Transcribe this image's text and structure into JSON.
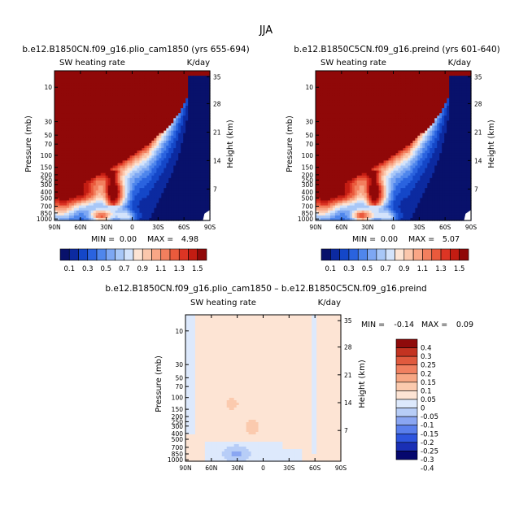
{
  "figure_title": "JJA",
  "colors": {
    "seq": [
      "#08116b",
      "#0c2aa0",
      "#1447c8",
      "#2a63df",
      "#4f86ec",
      "#7da7f3",
      "#a8c7f7",
      "#d3e3fb",
      "#fde4d4",
      "#fbc7ac",
      "#f9a686",
      "#f27f5e",
      "#ea5a3c",
      "#dc3524",
      "#c31c12",
      "#900808"
    ],
    "diff": [
      "#06086e",
      "#1a2fb5",
      "#2e55de",
      "#5a7fec",
      "#8aa6f2",
      "#b7cdf7",
      "#dde9fc",
      "#fde4d4",
      "#fbcaae",
      "#f7a784",
      "#f08060",
      "#e05a3e",
      "#c33321",
      "#8f0b0b"
    ]
  },
  "chart_data": [
    {
      "type": "heatmap",
      "panel": "left",
      "title": "b.e12.B1850CN.f09_g16.plio_cam1850 (yrs 655-694)",
      "left_label": "SW heating rate",
      "right_label": "K/day",
      "xlabel": "",
      "ylabel": "Pressure (mb)",
      "y2label": "Height (km)",
      "x_ticks": [
        "90N",
        "60N",
        "30N",
        "0",
        "30S",
        "60S",
        "90S"
      ],
      "y_ticks": [
        "10",
        "30",
        "50",
        "70",
        "100",
        "150",
        "200",
        "250",
        "300",
        "400",
        "500",
        "700",
        "850",
        "1000"
      ],
      "y2_ticks": [
        "35",
        "28",
        "21",
        "14",
        "7"
      ],
      "min_label": "MIN =",
      "min_value": "0.00",
      "max_label": "MAX =",
      "max_value": "4.98",
      "colorbar_labels": [
        "0.1",
        "0.3",
        "0.5",
        "0.7",
        "0.9",
        "1.1",
        "1.3",
        "1.5"
      ]
    },
    {
      "type": "heatmap",
      "panel": "right",
      "title": "b.e12.B1850C5CN.f09_g16.preind (yrs 601-640)",
      "left_label": "SW heating rate",
      "right_label": "K/day",
      "xlabel": "",
      "ylabel": "Pressure (mb)",
      "y2label": "Height (km)",
      "x_ticks": [
        "90N",
        "60N",
        "30N",
        "0",
        "30S",
        "60S",
        "90S"
      ],
      "y_ticks": [
        "10",
        "30",
        "50",
        "70",
        "100",
        "150",
        "200",
        "250",
        "300",
        "400",
        "500",
        "700",
        "850",
        "1000"
      ],
      "y2_ticks": [
        "35",
        "28",
        "21",
        "14",
        "7"
      ],
      "min_label": "MIN =",
      "min_value": "0.00",
      "max_label": "MAX =",
      "max_value": "5.07",
      "colorbar_labels": [
        "0.1",
        "0.3",
        "0.5",
        "0.7",
        "0.9",
        "1.1",
        "1.3",
        "1.5"
      ]
    },
    {
      "type": "heatmap",
      "panel": "difference",
      "title": "b.e12.B1850CN.f09_g16.plio_cam1850 – b.e12.B1850C5CN.f09_g16.preind",
      "left_label": "SW heating rate",
      "right_label": "K/day",
      "xlabel": "",
      "ylabel": "Pressure (mb)",
      "y2label": "Height (km)",
      "x_ticks": [
        "90N",
        "60N",
        "30N",
        "0",
        "30S",
        "60S",
        "90S"
      ],
      "y_ticks": [
        "10",
        "30",
        "50",
        "70",
        "100",
        "150",
        "200",
        "250",
        "300",
        "400",
        "500",
        "700",
        "850",
        "1000"
      ],
      "y2_ticks": [
        "35",
        "28",
        "21",
        "14",
        "7"
      ],
      "min_label": "MIN =",
      "min_value": "-0.14",
      "max_label": "MAX =",
      "max_value": "0.09",
      "colorbar_labels": [
        "0.4",
        "0.3",
        "0.25",
        "0.2",
        "0.15",
        "0.1",
        "0.05",
        "0",
        "-0.05",
        "-0.1",
        "-0.15",
        "-0.2",
        "-0.25",
        "-0.3",
        "-0.4"
      ]
    }
  ]
}
